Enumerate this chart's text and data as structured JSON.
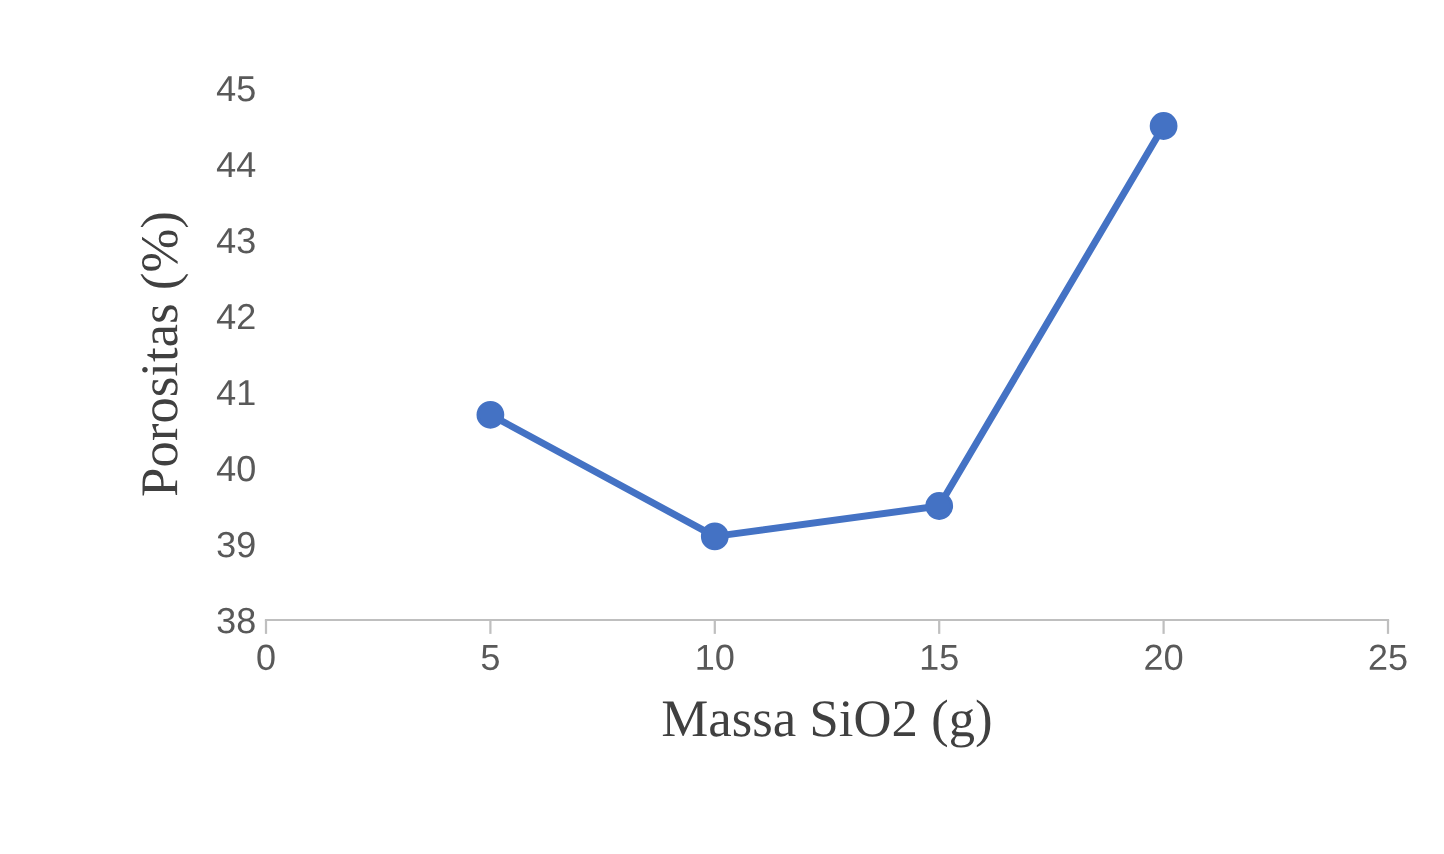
{
  "chart_data": {
    "type": "line",
    "xlabel": "Massa SiO2 (g)",
    "ylabel": "Porositas (%)",
    "x": [
      5,
      10,
      15,
      20
    ],
    "series": [
      {
        "color": "#4472c4",
        "values": [
          40.7,
          39.1,
          39.5,
          44.5
        ]
      }
    ],
    "xlim": [
      0,
      25
    ],
    "xticks": [
      0,
      5,
      10,
      15,
      20,
      25
    ],
    "ylim": [
      38,
      45
    ],
    "yticks": [
      38,
      39,
      40,
      41,
      42,
      43,
      44,
      45
    ],
    "marker": "circle",
    "line_style": "solid",
    "grid": false,
    "legend": false
  }
}
